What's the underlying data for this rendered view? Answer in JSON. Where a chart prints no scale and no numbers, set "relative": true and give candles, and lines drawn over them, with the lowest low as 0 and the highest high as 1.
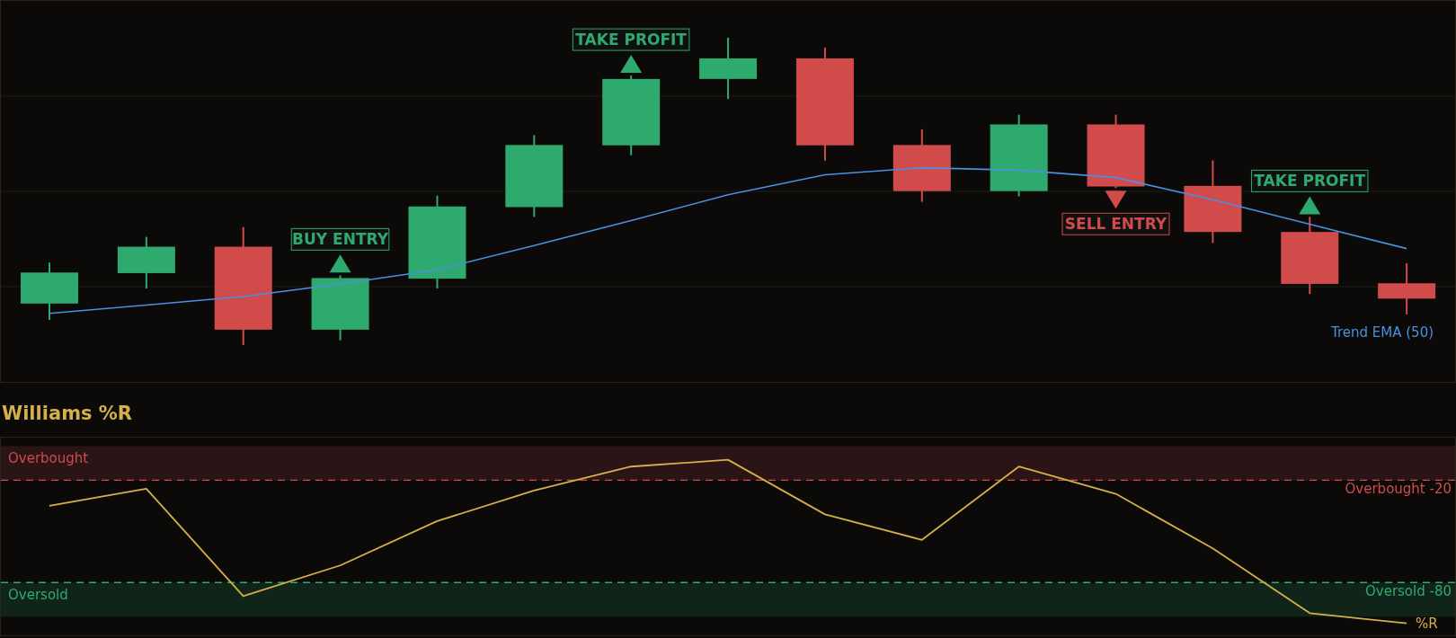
{
  "chart_data": [
    {
      "type": "candlestick",
      "relative": true,
      "tick_labels": false,
      "grid": true,
      "categories": [
        null,
        null,
        null,
        null,
        null,
        null,
        null,
        null,
        null,
        null,
        null,
        null,
        null,
        null,
        null
      ],
      "ohlc": [
        [
          0.135,
          0.268,
          0.082,
          0.236
        ],
        [
          0.234,
          0.352,
          0.184,
          0.32
        ],
        [
          0.32,
          0.384,
          0.0,
          0.05
        ],
        [
          0.05,
          0.227,
          0.015,
          0.218
        ],
        [
          0.216,
          0.486,
          0.184,
          0.451
        ],
        [
          0.449,
          0.683,
          0.417,
          0.651
        ],
        [
          0.65,
          0.877,
          0.618,
          0.866
        ],
        [
          0.866,
          1.0,
          0.801,
          0.933
        ],
        [
          0.933,
          0.968,
          0.6,
          0.65
        ],
        [
          0.651,
          0.702,
          0.466,
          0.501
        ],
        [
          0.501,
          0.75,
          0.484,
          0.718
        ],
        [
          0.718,
          0.75,
          0.511,
          0.516
        ],
        [
          0.518,
          0.601,
          0.332,
          0.368
        ],
        [
          0.368,
          0.417,
          0.166,
          0.199
        ],
        [
          0.201,
          0.266,
          0.1,
          0.151
        ]
      ],
      "colors": [
        "#2eaa6e",
        "#2eaa6e",
        "#d14b4b",
        "#2eaa6e",
        "#2eaa6e",
        "#2eaa6e",
        "#2eaa6e",
        "#2eaa6e",
        "#d14b4b",
        "#d14b4b",
        "#2eaa6e",
        "#d14b4b",
        "#d14b4b",
        "#d14b4b",
        "#d14b4b"
      ],
      "series": [
        {
          "type": "line",
          "name": "Trend EMA (50)",
          "color": "#4a8fe0",
          "values": [
            0.103,
            0.13,
            0.158,
            0.199,
            0.245,
            0.324,
            0.405,
            0.489,
            0.554,
            0.577,
            0.569,
            0.545,
            0.473,
            0.393,
            0.314
          ]
        }
      ],
      "annotations": [
        "BUY ENTRY",
        "TAKE PROFIT",
        "SELL ENTRY",
        "TAKE PROFIT"
      ]
    },
    {
      "type": "line",
      "title": "Williams %R",
      "tick_labels": false,
      "grid": false,
      "categories": [
        null,
        null,
        null,
        null,
        null,
        null,
        null,
        null,
        null,
        null,
        null,
        null,
        null,
        null,
        null
      ],
      "ylim": [
        -111,
        5
      ],
      "series": [
        {
          "name": "%R",
          "color": "#d4b048",
          "values": [
            -35,
            -25,
            -88,
            -70,
            -44,
            -26,
            -12,
            -8,
            -40,
            -55,
            -12,
            -28,
            -60,
            -98,
            -104
          ]
        }
      ],
      "bands": [
        {
          "axis": "y",
          "from": -20,
          "to": 0,
          "label": "Overbought",
          "color": "#2a1416"
        },
        {
          "axis": "y",
          "from": -100,
          "to": -80,
          "label": "Oversold",
          "color": "#10241a"
        }
      ],
      "ref_lines": [
        {
          "axis": "y",
          "value": -20,
          "label": "Overbought -20",
          "color": "#d14b4b",
          "line_style": "dashed"
        },
        {
          "axis": "y",
          "value": -80,
          "label": "Oversold -80",
          "color": "#2eaa6e",
          "line_style": "dashed"
        }
      ]
    }
  ]
}
